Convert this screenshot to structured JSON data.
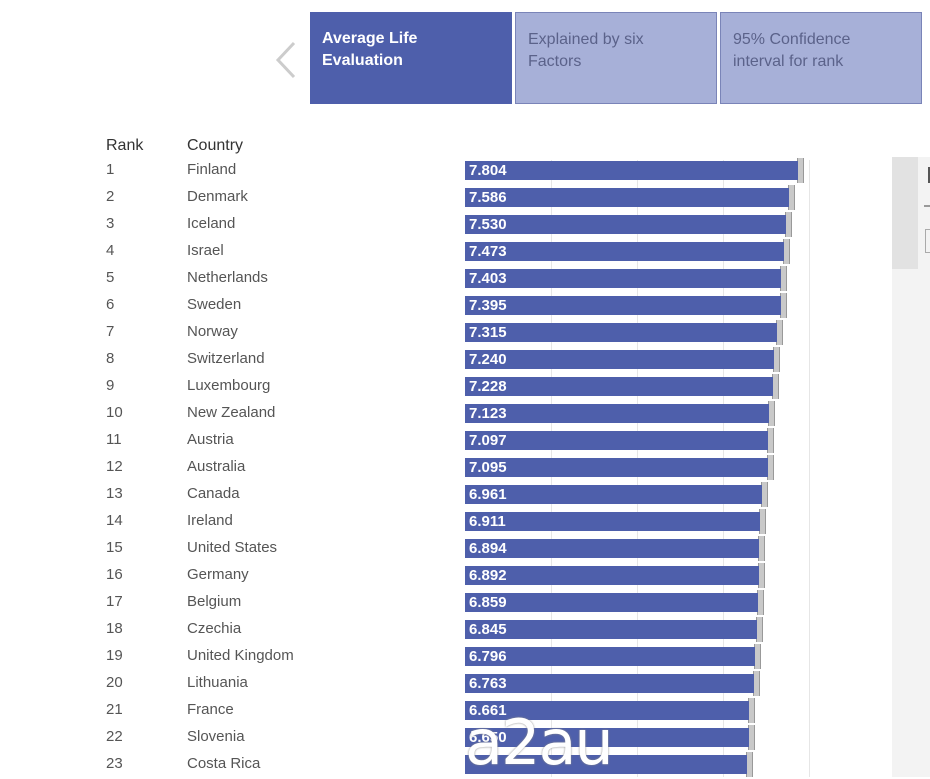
{
  "tabs": [
    {
      "label_line1": "Average Life",
      "label_line2": "Evaluation",
      "active": true
    },
    {
      "label_line1": "Explained by six",
      "label_line2": "Factors",
      "active": false
    },
    {
      "label_line1": "95% Confidence",
      "label_line2": "interval for rank",
      "active": false
    }
  ],
  "table": {
    "headers": {
      "rank": "Rank",
      "country": "Country"
    },
    "rows": [
      {
        "rank": "1",
        "country": "Finland",
        "value": "7.804"
      },
      {
        "rank": "2",
        "country": "Denmark",
        "value": "7.586"
      },
      {
        "rank": "3",
        "country": "Iceland",
        "value": "7.530"
      },
      {
        "rank": "4",
        "country": "Israel",
        "value": "7.473"
      },
      {
        "rank": "5",
        "country": "Netherlands",
        "value": "7.403"
      },
      {
        "rank": "6",
        "country": "Sweden",
        "value": "7.395"
      },
      {
        "rank": "7",
        "country": "Norway",
        "value": "7.315"
      },
      {
        "rank": "8",
        "country": "Switzerland",
        "value": "7.240"
      },
      {
        "rank": "9",
        "country": "Luxembourg",
        "value": "7.228"
      },
      {
        "rank": "10",
        "country": "New Zealand",
        "value": "7.123"
      },
      {
        "rank": "11",
        "country": "Austria",
        "value": "7.097"
      },
      {
        "rank": "12",
        "country": "Australia",
        "value": "7.095"
      },
      {
        "rank": "13",
        "country": "Canada",
        "value": "6.961"
      },
      {
        "rank": "14",
        "country": "Ireland",
        "value": "6.911"
      },
      {
        "rank": "15",
        "country": "United States",
        "value": "6.894"
      },
      {
        "rank": "16",
        "country": "Germany",
        "value": "6.892"
      },
      {
        "rank": "17",
        "country": "Belgium",
        "value": "6.859"
      },
      {
        "rank": "18",
        "country": "Czechia",
        "value": "6.845"
      },
      {
        "rank": "19",
        "country": "United Kingdom",
        "value": "6.796"
      },
      {
        "rank": "20",
        "country": "Lithuania",
        "value": "6.763"
      },
      {
        "rank": "21",
        "country": "France",
        "value": "6.661"
      },
      {
        "rank": "22",
        "country": "Slovenia",
        "value": "6.650"
      },
      {
        "rank": "23",
        "country": "Costa Rica",
        "value": ""
      }
    ]
  },
  "watermark": "a2au",
  "colors": {
    "bar": "#4e5fab",
    "tab_active": "#4e5fab",
    "tab_inactive": "#a7b0d8",
    "confidence_interval": "#c9c9c9"
  },
  "icons": {
    "previous": "chevron-left-icon"
  }
}
